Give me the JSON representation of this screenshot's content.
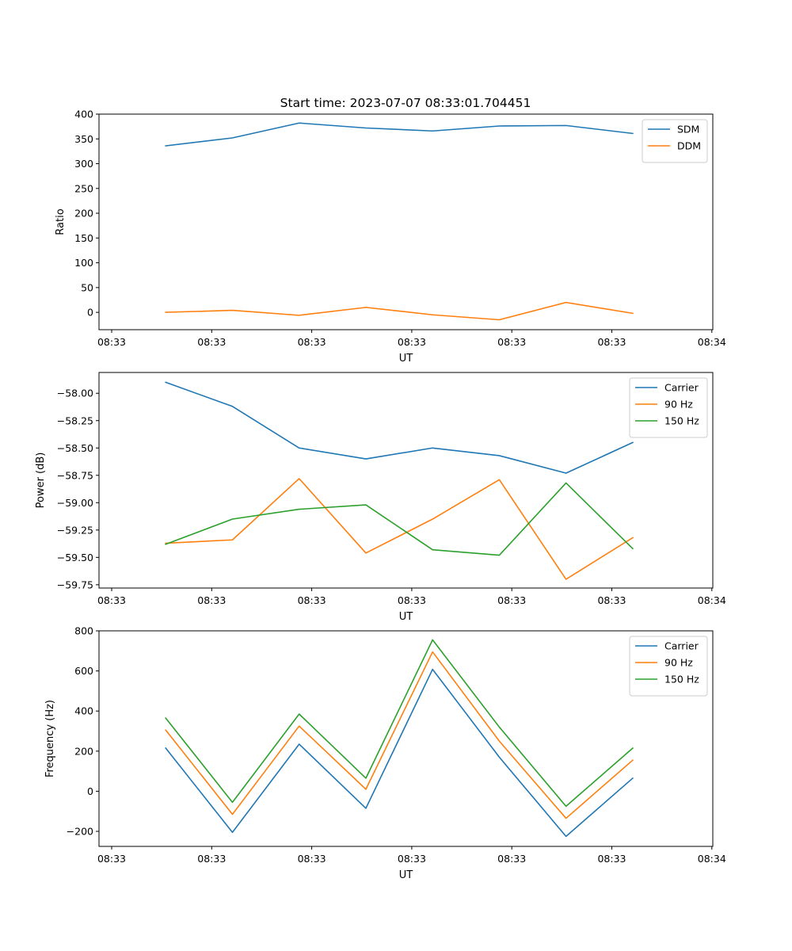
{
  "figure_title": "Start time: 2023-07-07 08:33:01.704451",
  "colors": {
    "blue": "#1f77b4",
    "orange": "#ff7f0e",
    "green": "#2ca02c"
  },
  "chart_data": [
    {
      "type": "line",
      "xlabel": "UT",
      "ylabel": "Ratio",
      "x_ticks": [
        "08:33",
        "08:33",
        "08:33",
        "08:33",
        "08:33",
        "08:33",
        "08:34"
      ],
      "xlim": [
        -0.5,
        8.7
      ],
      "ylim": [
        -35,
        400
      ],
      "y_ticks": [
        0,
        50,
        100,
        150,
        200,
        250,
        300,
        350,
        400
      ],
      "y_tick_labels": [
        "0",
        "50",
        "100",
        "150",
        "200",
        "250",
        "300",
        "350",
        "400"
      ],
      "legend_loc": "upper right",
      "x": [
        0.5,
        1.5,
        2.5,
        3.5,
        4.5,
        5.5,
        6.5,
        7.5
      ],
      "series": [
        {
          "name": "SDM",
          "color": "#1f77b4",
          "values": [
            336,
            352,
            382,
            372,
            366,
            376,
            377,
            361
          ]
        },
        {
          "name": "DDM",
          "color": "#ff7f0e",
          "values": [
            0,
            4,
            -6,
            10,
            -5,
            -15,
            20,
            -2
          ]
        }
      ]
    },
    {
      "type": "line",
      "xlabel": "UT",
      "ylabel": "Power (dB)",
      "x_ticks": [
        "08:33",
        "08:33",
        "08:33",
        "08:33",
        "08:33",
        "08:33",
        "08:34"
      ],
      "xlim": [
        -0.5,
        8.7
      ],
      "ylim": [
        -59.78,
        -57.81
      ],
      "y_ticks": [
        -58.0,
        -58.25,
        -58.5,
        -58.75,
        -59.0,
        -59.25,
        -59.5,
        -59.75
      ],
      "y_tick_labels": [
        "−58.00",
        "−58.25",
        "−58.50",
        "−58.75",
        "−59.00",
        "−59.25",
        "−59.50",
        "−59.75"
      ],
      "legend_loc": "upper right",
      "x": [
        0.5,
        1.5,
        2.5,
        3.5,
        4.5,
        5.5,
        6.5,
        7.5
      ],
      "series": [
        {
          "name": "Carrier",
          "color": "#1f77b4",
          "values": [
            -57.9,
            -58.12,
            -58.5,
            -58.6,
            -58.5,
            -58.57,
            -58.73,
            -58.45
          ]
        },
        {
          "name": "90 Hz",
          "color": "#ff7f0e",
          "values": [
            -59.37,
            -59.34,
            -58.78,
            -59.46,
            -59.15,
            -58.79,
            -59.7,
            -59.32
          ]
        },
        {
          "name": "150 Hz",
          "color": "#2ca02c",
          "values": [
            -59.38,
            -59.15,
            -59.06,
            -59.02,
            -59.43,
            -59.48,
            -58.82,
            -59.42
          ]
        }
      ]
    },
    {
      "type": "line",
      "xlabel": "UT",
      "ylabel": "Frequency (Hz)",
      "x_ticks": [
        "08:33",
        "08:33",
        "08:33",
        "08:33",
        "08:33",
        "08:33",
        "08:34"
      ],
      "xlim": [
        -0.5,
        8.7
      ],
      "ylim": [
        -275,
        800
      ],
      "y_ticks": [
        -200,
        0,
        200,
        400,
        600,
        800
      ],
      "y_tick_labels": [
        "−200",
        "0",
        "200",
        "400",
        "600",
        "800"
      ],
      "legend_loc": "upper right",
      "x": [
        0.5,
        1.5,
        2.5,
        3.5,
        4.5,
        5.5,
        6.5,
        7.5
      ],
      "series": [
        {
          "name": "Carrier",
          "color": "#1f77b4",
          "values": [
            215,
            -205,
            235,
            -85,
            608,
            170,
            -225,
            65
          ]
        },
        {
          "name": "90 Hz",
          "color": "#ff7f0e",
          "values": [
            305,
            -115,
            325,
            10,
            695,
            250,
            -135,
            155
          ]
        },
        {
          "name": "150 Hz",
          "color": "#2ca02c",
          "values": [
            365,
            -55,
            385,
            65,
            755,
            320,
            -75,
            215
          ]
        }
      ]
    }
  ]
}
